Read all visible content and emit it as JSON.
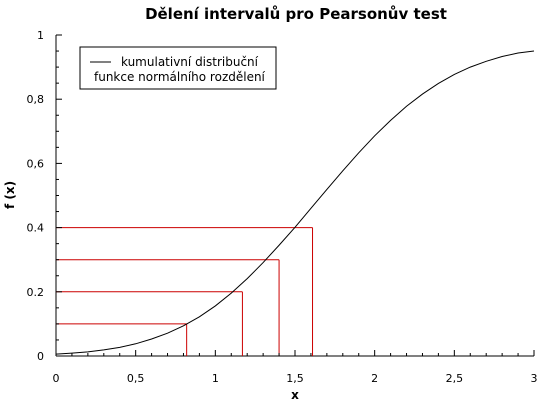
{
  "chart_data": {
    "type": "line",
    "title": "Dělení intervalů pro Pearsonův test",
    "xlabel": "x",
    "ylabel": "f (x)",
    "xlim": [
      0,
      3
    ],
    "ylim": [
      0,
      1
    ],
    "x_ticks": [
      0,
      0.5,
      1,
      1.5,
      2,
      2.5,
      3
    ],
    "x_tick_labels": [
      "0",
      "0,5",
      "1",
      "1,5",
      "2",
      "2,5",
      "3"
    ],
    "y_ticks": [
      0,
      0.2,
      0.4,
      0.6,
      0.8,
      1
    ],
    "y_tick_labels": [
      "0",
      "0.2",
      "0.4",
      "0,6",
      "0,8",
      "1"
    ],
    "grid": false,
    "legend": {
      "placement": "top-left",
      "lines": [
        "kumulativní distribuční",
        "funkce normálního rozdělení"
      ]
    },
    "series": [
      {
        "name": "kumulativní distribuční funkce normálního rozdělení",
        "color": "#000000",
        "x": [
          0,
          0.1,
          0.2,
          0.3,
          0.4,
          0.5,
          0.6,
          0.7,
          0.8,
          0.9,
          1.0,
          1.1,
          1.2,
          1.3,
          1.4,
          1.5,
          1.6,
          1.7,
          1.8,
          1.9,
          2.0,
          2.1,
          2.2,
          2.3,
          2.4,
          2.5,
          2.6,
          2.7,
          2.8,
          2.9,
          3.0
        ],
        "y": [
          0.006,
          0.009,
          0.013,
          0.019,
          0.027,
          0.038,
          0.053,
          0.071,
          0.094,
          0.122,
          0.156,
          0.196,
          0.241,
          0.291,
          0.345,
          0.401,
          0.46,
          0.519,
          0.577,
          0.633,
          0.686,
          0.734,
          0.778,
          0.816,
          0.849,
          0.877,
          0.9,
          0.918,
          0.933,
          0.944,
          0.95
        ]
      }
    ],
    "quantile_guides": {
      "color": "#cc0000",
      "points": [
        {
          "x": 0.82,
          "y": 0.1
        },
        {
          "x": 1.17,
          "y": 0.2
        },
        {
          "x": 1.4,
          "y": 0.3
        },
        {
          "x": 1.61,
          "y": 0.4
        }
      ]
    }
  }
}
